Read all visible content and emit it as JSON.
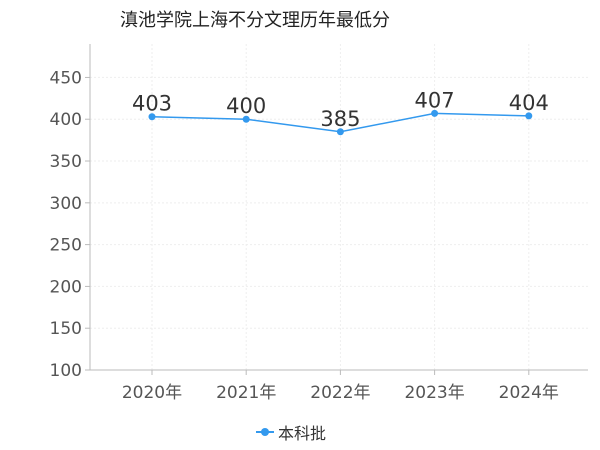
{
  "chart_data": {
    "type": "line",
    "title": "滇池学院上海不分文理历年最低分",
    "categories": [
      "2020年",
      "2021年",
      "2022年",
      "2023年",
      "2024年"
    ],
    "series": [
      {
        "name": "本科批",
        "values": [
          403,
          400,
          385,
          407,
          404
        ],
        "color": "#3399ee"
      }
    ],
    "ylim": [
      100,
      490
    ],
    "yticks": [
      100,
      150,
      200,
      250,
      300,
      350,
      400,
      450
    ],
    "grid": true,
    "legend_position": "bottom-center",
    "xlabel": "",
    "ylabel": ""
  }
}
